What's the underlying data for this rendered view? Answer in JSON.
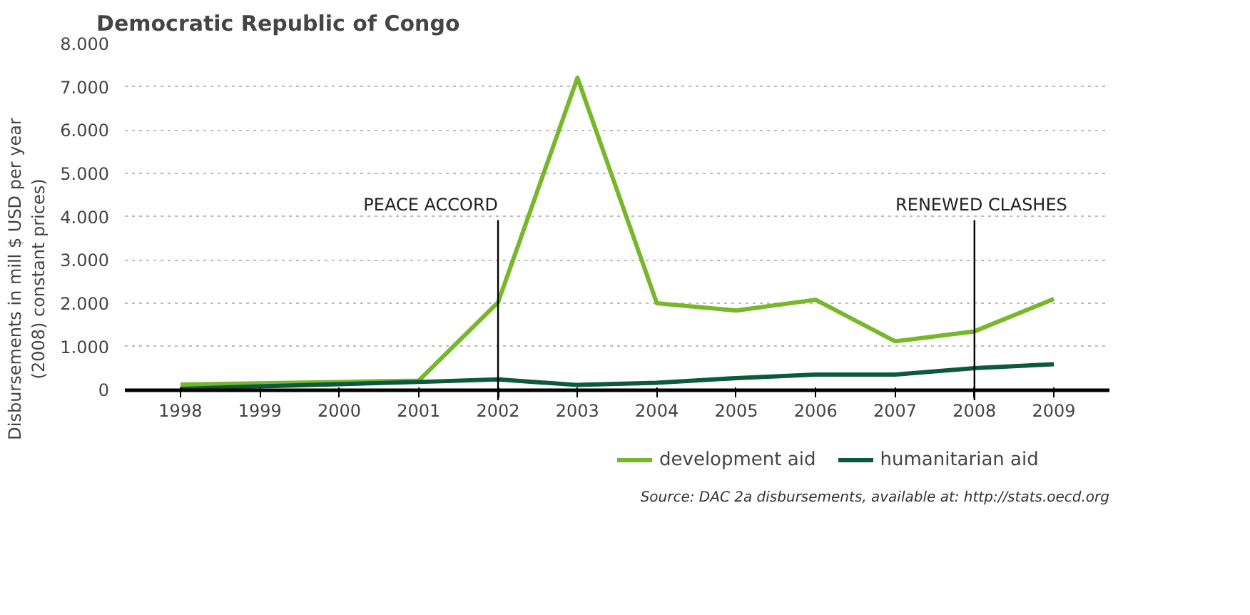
{
  "chart_data": {
    "type": "line",
    "title": "Democratic Republic of Congo",
    "ylabel": "Disbursements in mill $ USD per year\n(2008) constant prices)",
    "categories": [
      "1998",
      "1999",
      "2000",
      "2001",
      "2002",
      "2003",
      "2004",
      "2005",
      "2006",
      "2007",
      "2008",
      "2009"
    ],
    "series": [
      {
        "name": "development aid",
        "color": "#76b82a",
        "values": [
          120,
          150,
          180,
          210,
          2020,
          7210,
          2000,
          1830,
          2080,
          1120,
          1350,
          2100
        ]
      },
      {
        "name": "humanitarian aid",
        "color": "#0b5a3c",
        "values": [
          20,
          80,
          130,
          180,
          240,
          110,
          160,
          270,
          350,
          350,
          500,
          590
        ]
      }
    ],
    "ylim": [
      0,
      8000
    ],
    "yticks": [
      {
        "value": 0,
        "label": "0"
      },
      {
        "value": 1000,
        "label": "1.000"
      },
      {
        "value": 2000,
        "label": "2.000"
      },
      {
        "value": 3000,
        "label": "3.000"
      },
      {
        "value": 4000,
        "label": "4.000"
      },
      {
        "value": 5000,
        "label": "5.000"
      },
      {
        "value": 6000,
        "label": "6.000"
      },
      {
        "value": 7000,
        "label": "7.000"
      },
      {
        "value": 8000,
        "label": "8.000"
      }
    ],
    "grid": "y",
    "legend": "bottom right",
    "line_style": "solid",
    "marker": "none",
    "ref_lines": [
      {
        "axis": "x",
        "value": "2002",
        "label": "PEACE ACCORD",
        "color": "#000000"
      },
      {
        "axis": "x",
        "value": "2008",
        "label": "RENEWED CLASHES",
        "color": "#000000"
      }
    ],
    "annotations": [
      "Source: DAC 2a disbursements, available at: http://stats.oecd.org"
    ]
  }
}
